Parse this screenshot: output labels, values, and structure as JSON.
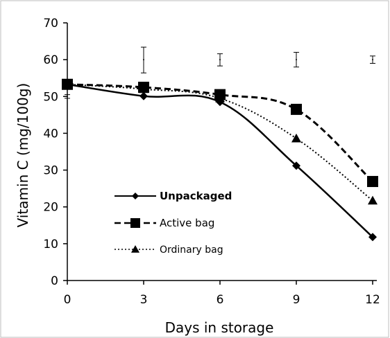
{
  "chart_data": {
    "type": "line",
    "title": "",
    "xlabel": "Days in storage",
    "ylabel": "Vitamin C (mg/100g)",
    "x": [
      0,
      3,
      6,
      9,
      12
    ],
    "xticks": [
      "0",
      "3",
      "6",
      "9",
      "12"
    ],
    "xlim": [
      0,
      12
    ],
    "ylim": [
      0,
      70
    ],
    "yticks": [
      "0",
      "10",
      "20",
      "30",
      "40",
      "50",
      "60",
      "70"
    ],
    "grid": false,
    "legend_position": "bottom-left",
    "series": [
      {
        "name": "Unpackaged",
        "marker": "diamond",
        "line": "solid",
        "values": [
          53.3,
          50.1,
          48.5,
          31.2,
          11.8
        ]
      },
      {
        "name": "Active bag",
        "marker": "square",
        "line": "dashed",
        "values": [
          53.3,
          52.5,
          50.5,
          46.5,
          26.9
        ]
      },
      {
        "name": "Ordinary bag",
        "marker": "triangle",
        "line": "dotted",
        "values": [
          53.3,
          52.0,
          49.5,
          38.6,
          21.7
        ]
      }
    ],
    "error_bars": [
      {
        "x": 0,
        "center": 50.0,
        "low": 49.5,
        "high": 50.5
      },
      {
        "x": 3,
        "center": 60.0,
        "low": 56.4,
        "high": 63.4
      },
      {
        "x": 6,
        "center": 60.0,
        "low": 58.3,
        "high": 61.6
      },
      {
        "x": 9,
        "center": 60.0,
        "low": 58.0,
        "high": 62.0
      },
      {
        "x": 12,
        "center": 60.0,
        "low": 59.0,
        "high": 61.0
      }
    ]
  }
}
